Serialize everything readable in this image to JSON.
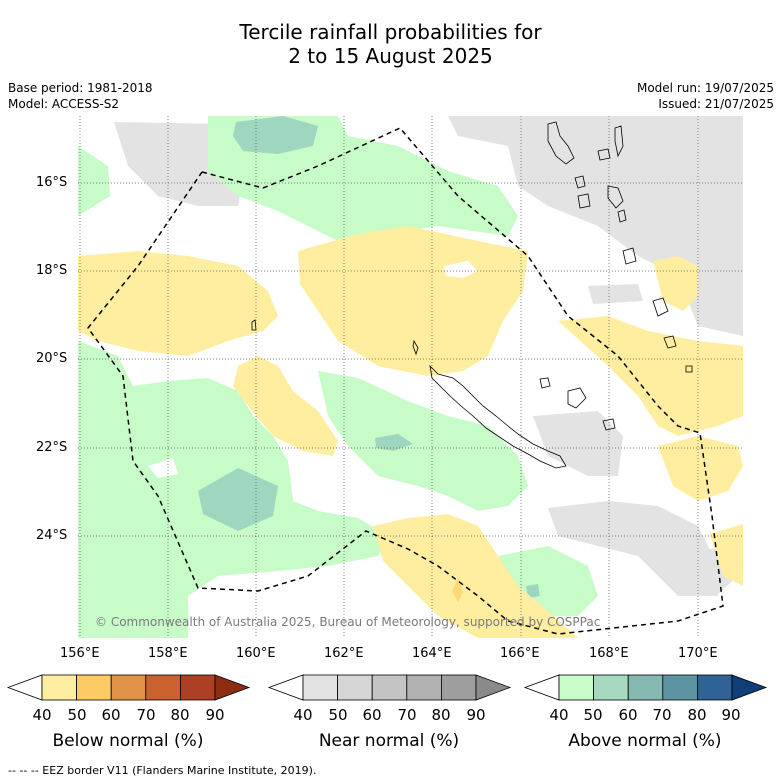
{
  "title": {
    "line1": "Tercile rainfall probabilities for",
    "line2": "2 to 15 August 2025"
  },
  "meta": {
    "base_period": "Base period: 1981-2018",
    "model": "Model: ACCESS-S2",
    "model_run": "Model run: 19/07/2025",
    "issued": "Issued: 21/07/2025"
  },
  "map": {
    "lat_labels": [
      "16°S",
      "18°S",
      "20°S",
      "22°S",
      "24°S"
    ],
    "lon_labels": [
      "156°E",
      "158°E",
      "160°E",
      "162°E",
      "164°E",
      "166°E",
      "168°E",
      "170°E"
    ],
    "credit": "© Commonwealth of Australia 2025, Bureau of Meteorology, supported by COSPPac",
    "colors": {
      "below_50": "#ffeda0",
      "below_60": "#fed976",
      "near_50": "#e3e3e3",
      "above_50": "#c7fcc9",
      "above_60": "#9fd6bf",
      "coast": "#000000",
      "eez": "#000000"
    }
  },
  "colorbars": [
    {
      "name": "Below normal (%)",
      "ticks": [
        "40",
        "50",
        "60",
        "70",
        "80",
        "90"
      ],
      "colors": [
        "#ffffff",
        "#ffeda0",
        "#fdcb63",
        "#e3924a",
        "#cc6130",
        "#ad4024",
        "#8c2d12"
      ]
    },
    {
      "name": "Near normal (%)",
      "ticks": [
        "40",
        "50",
        "60",
        "70",
        "80",
        "90"
      ],
      "colors": [
        "#ffffff",
        "#e3e3e3",
        "#d5d5d5",
        "#c4c4c4",
        "#b1b1b1",
        "#9e9e9e",
        "#8a8a8a"
      ]
    },
    {
      "name": "Above normal (%)",
      "ticks": [
        "40",
        "50",
        "60",
        "70",
        "80",
        "90"
      ],
      "colors": [
        "#ffffff",
        "#c7fcc9",
        "#a6d9c0",
        "#85b8b1",
        "#5c95a1",
        "#2f6296",
        "#0f3f78"
      ]
    }
  ],
  "footer": "--  --  -- EEZ border V11 (Flanders Marine Institute, 2019)."
}
